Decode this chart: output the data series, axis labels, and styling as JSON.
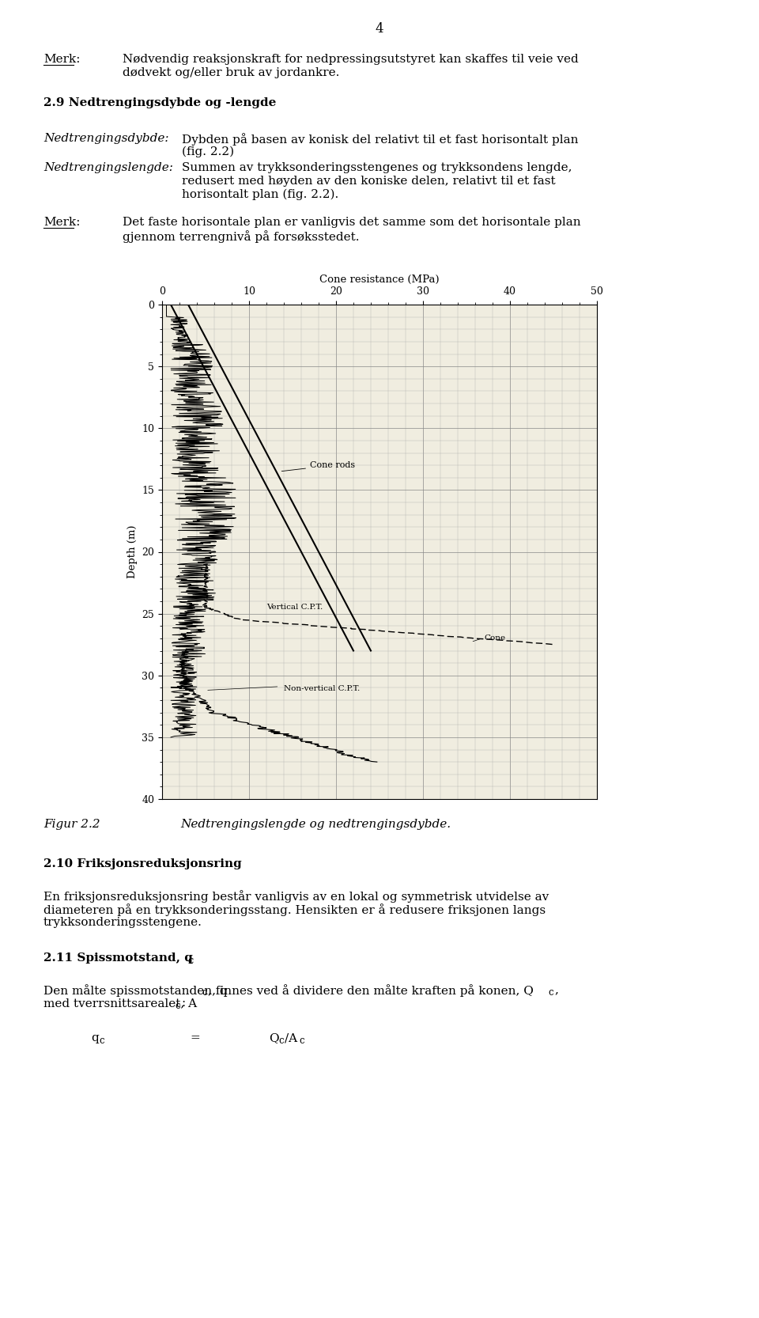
{
  "page_number": "4",
  "bg_color": "#ffffff",
  "text_color": "#000000",
  "font_size_body": 11,
  "font_size_heading": 12,
  "font_size_page_num": 12,
  "sections": {
    "merk1_label": "Merk:",
    "merk1_text_l1": "Nødvendig reaksjonskraft for nedpressingsutstyret kan skaffes til veie ved",
    "merk1_text_l2": "dødvekt og/eller bruk av jordankre.",
    "heading": "2.9 Nedtrengingsdybde og -lengde",
    "term1_label": "Nedtrengingsdybde:",
    "term1_text_l1": "Dybden på basen av konisk del relativt til et fast horisontalt plan",
    "term1_text_l2": "(fig. 2.2)",
    "term2_label": "Nedtrengingslengde:",
    "term2_text_l1": "Summen av trykksonderingsstengenes og trykksondens lengde,",
    "term2_text_l2": "redusert med høyden av den koniske delen, relativt til et fast",
    "term2_text_l3": "horisontalt plan (fig. 2.2).",
    "merk2_label": "Merk:",
    "merk2_text_l1": "Det faste horisontale plan er vanligvis det samme som det horisontale plan",
    "merk2_text_l2": "gjennom terrengnivå på forsøksstedet.",
    "fig_label": "Figur 2.2",
    "fig_caption": "Nedtrengingslengde og nedtrengingsdybde.",
    "section2_heading": "2.10 Friksjonsreduksjonsring",
    "section2_text_l1": "En friksjonsreduksjonsring består vanligvis av en lokal og symmetrisk utvidelse av",
    "section2_text_l2": "diameteren på en trykksonderingsstang. Hensikten er å redusere friksjonen langs",
    "section2_text_l3": "trykksonderingsstengene.",
    "section3_heading_pre": "2.11 Spissmotstand, q",
    "section3_heading_sub": "c",
    "section3_text_l1_pre": "Den målte spissmotstanden, q",
    "section3_text_l1_sub1": "c",
    "section3_text_l1_mid": ", finnes ved å dividere den målte kraften på konen, Q",
    "section3_text_l1_sub2": "c",
    "section3_text_l1_end": ",",
    "section3_text_l2_pre": "med tverrsnittsarealet, A",
    "section3_text_l2_sub": "c",
    "section3_text_l2_end": ":",
    "formula_q": "q",
    "formula_q_sub": "c",
    "formula_eq": "=",
    "formula_Q": "Q",
    "formula_Q_sub": "c",
    "formula_A": "/A",
    "formula_A_sub": "c"
  },
  "chart": {
    "title": "Cone resistance (MPa)",
    "ylabel": "Depth (m)",
    "xlim": [
      0,
      50
    ],
    "ylim": [
      40,
      0
    ],
    "xticks": [
      0,
      10,
      20,
      30,
      40,
      50
    ],
    "yticks": [
      0,
      5,
      10,
      15,
      20,
      25,
      30,
      35,
      40
    ],
    "label_cone_rods": "Cone rods",
    "label_vertical": "Vertical C.P.T.",
    "label_cone": "Cone",
    "label_nonvertical": "Non-vertical C.P.T."
  }
}
